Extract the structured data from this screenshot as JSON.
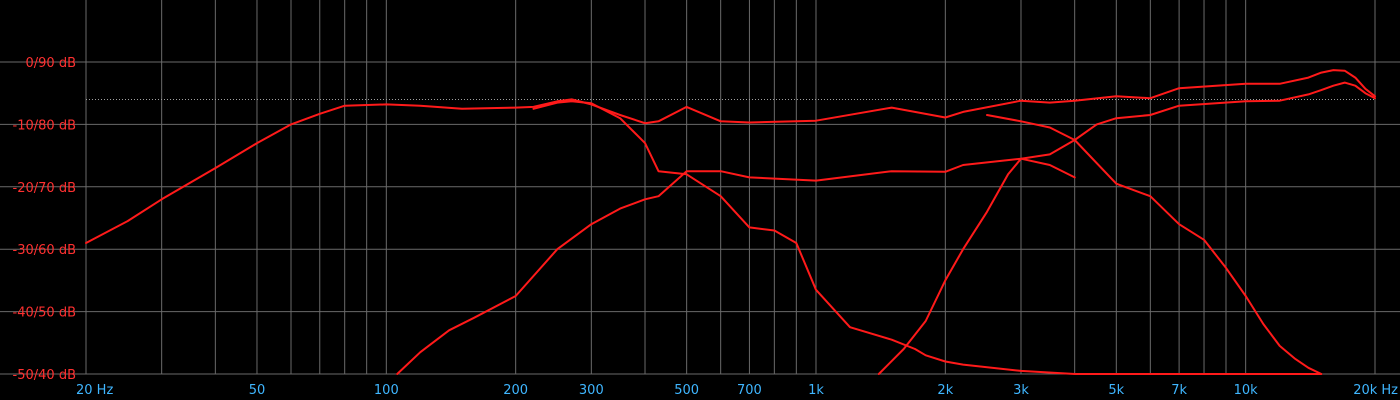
{
  "chart_data": {
    "type": "line",
    "title": "",
    "xlabel": "",
    "ylabel": "",
    "x_scale": "log",
    "xlim": [
      20,
      20000
    ],
    "ylim": [
      -50,
      10
    ],
    "grid": true,
    "reference_level_db": -6,
    "colors": {
      "background": "#000000",
      "grid": "#6a6a6a",
      "reference": "#a0a0a0",
      "curve": "#ff1a1a",
      "y_labels": "#ff3030",
      "x_labels": "#3fb6ff"
    },
    "y_ticks": [
      {
        "value": 0,
        "label": "0/90 dB"
      },
      {
        "value": -10,
        "label": "-10/80 dB"
      },
      {
        "value": -20,
        "label": "-20/70 dB"
      },
      {
        "value": -30,
        "label": "-30/60 dB"
      },
      {
        "value": -40,
        "label": "-40/50 dB"
      },
      {
        "value": -50,
        "label": "-50/40 dB"
      }
    ],
    "x_ticks": [
      {
        "value": 20,
        "label": "20 Hz"
      },
      {
        "value": 50,
        "label": "50"
      },
      {
        "value": 100,
        "label": "100"
      },
      {
        "value": 200,
        "label": "200"
      },
      {
        "value": 300,
        "label": "300"
      },
      {
        "value": 500,
        "label": "500"
      },
      {
        "value": 700,
        "label": "700"
      },
      {
        "value": 1000,
        "label": "1k"
      },
      {
        "value": 2000,
        "label": "2k"
      },
      {
        "value": 3000,
        "label": "3k"
      },
      {
        "value": 5000,
        "label": "5k"
      },
      {
        "value": 7000,
        "label": "7k"
      },
      {
        "value": 10000,
        "label": "10k"
      },
      {
        "value": 20000,
        "label": "20k Hz"
      }
    ],
    "minor_grid_x": [
      30,
      40,
      60,
      70,
      80,
      90,
      400,
      600,
      800,
      900,
      4000,
      6000,
      8000,
      9000
    ],
    "series": [
      {
        "x": [
          20,
          25,
          30,
          40,
          50,
          60,
          70,
          80,
          100,
          120,
          150,
          200,
          220,
          250,
          270,
          300,
          350,
          400,
          430,
          500,
          600,
          700,
          1000,
          1500,
          2000,
          2200,
          3000,
          3500,
          4000,
          5000,
          6000,
          7000,
          10000,
          12000,
          14000,
          15000,
          16000,
          17000,
          18000,
          19000,
          20000
        ],
        "y": [
          -29,
          -25.5,
          -22,
          -17,
          -13,
          -10,
          -8.3,
          -7,
          -6.8,
          -7,
          -7.5,
          -7.3,
          -7.2,
          -6.3,
          -6,
          -6.8,
          -8.5,
          -9.8,
          -9.5,
          -7.2,
          -9.5,
          -9.7,
          -9.4,
          -7.3,
          -8.9,
          -8,
          -6.2,
          -6.5,
          -6.2,
          -5.5,
          -5.8,
          -4.2,
          -3.5,
          -3.5,
          -2.5,
          -1.7,
          -1.3,
          -1.4,
          -2.5,
          -4.3,
          -5.5
        ]
      },
      {
        "x": [
          106,
          120,
          140,
          160,
          200,
          250,
          300,
          350,
          400,
          430,
          500,
          600,
          700,
          1000,
          1500,
          2000,
          2200,
          3000,
          3500,
          4000
        ],
        "y": [
          -50,
          -46.5,
          -43,
          -41,
          -37.5,
          -30,
          -26,
          -23.5,
          -22,
          -21.5,
          -17.5,
          -17.5,
          -18.5,
          -19,
          -17.5,
          -17.6,
          -16.5,
          -15.5,
          -16.5,
          -18.5
        ]
      },
      {
        "x": [
          1400,
          1600,
          1800,
          2000,
          2200,
          2500,
          2800,
          3000,
          3500,
          4000,
          4500,
          5000,
          6000,
          7000,
          10000,
          12000,
          14000,
          15000,
          16000,
          17000,
          18000,
          19000,
          20000
        ],
        "y": [
          -50,
          -46,
          -41.5,
          -35,
          -30,
          -24,
          -18,
          -15.5,
          -14.8,
          -12.5,
          -10,
          -9,
          -8.5,
          -7,
          -6.3,
          -6.2,
          -5.2,
          -4.5,
          -3.8,
          -3.3,
          -3.8,
          -5,
          -5.8
        ]
      },
      {
        "x": [
          220,
          250,
          270,
          300,
          350,
          400,
          430,
          500,
          600,
          700,
          800,
          900,
          1000,
          1200,
          1500,
          1700,
          1800,
          2000,
          2200,
          3000,
          4000,
          5000,
          6000,
          7000,
          8000,
          9000,
          10000,
          11000,
          12000,
          13000,
          14000,
          15000
        ],
        "y": [
          -7.5,
          -6.5,
          -6.3,
          -6.6,
          -9,
          -13,
          -17.5,
          -18,
          -21.5,
          -26.5,
          -27,
          -29,
          -36.5,
          -42.5,
          -44.5,
          -46,
          -47,
          -48,
          -48.5,
          -49.5,
          -50,
          -50,
          -50,
          -50,
          -50,
          -50,
          -50,
          -50,
          -50,
          -50,
          -50,
          -50
        ]
      },
      {
        "x": [
          2500,
          3000,
          3500,
          4000,
          5000,
          6000,
          7000,
          8000,
          9000,
          10000,
          11000,
          12000,
          13000,
          14000,
          15000
        ],
        "y": [
          -8.5,
          -9.5,
          -10.5,
          -12.5,
          -19.5,
          -21.5,
          -26,
          -28.5,
          -33,
          -37.5,
          -42,
          -45.5,
          -47.5,
          -49,
          -50
        ]
      }
    ]
  }
}
